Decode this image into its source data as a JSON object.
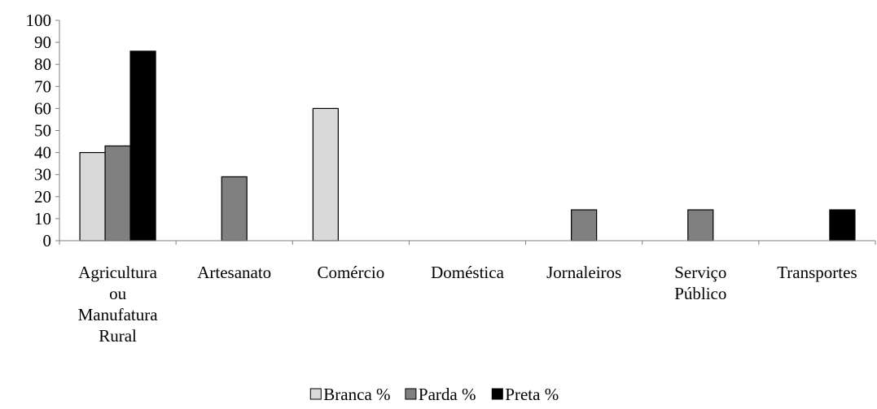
{
  "chart_data": {
    "type": "bar",
    "title": "",
    "xlabel": "",
    "ylabel": "",
    "ylim": [
      0,
      100
    ],
    "y_ticks": [
      0,
      10,
      20,
      30,
      40,
      50,
      60,
      70,
      80,
      90,
      100
    ],
    "grid": false,
    "legend_position": "bottom",
    "categories": [
      [
        "Agricultura",
        "ou",
        "Manufatura",
        "Rural"
      ],
      [
        "Artesanato"
      ],
      [
        "Comércio"
      ],
      [
        "Doméstica"
      ],
      [
        "Jornaleiros"
      ],
      [
        "Serviço",
        "Público"
      ],
      [
        "Transportes"
      ]
    ],
    "series": [
      {
        "name": "Branca %",
        "color": "#d9d9d9",
        "values": [
          40,
          0,
          60,
          0,
          0,
          0,
          0
        ]
      },
      {
        "name": "Parda %",
        "color": "#808080",
        "values": [
          43,
          29,
          0,
          0,
          14,
          14,
          0
        ]
      },
      {
        "name": "Preta %",
        "color": "#000000",
        "values": [
          86,
          0,
          0,
          0,
          0,
          0,
          14
        ]
      }
    ]
  }
}
